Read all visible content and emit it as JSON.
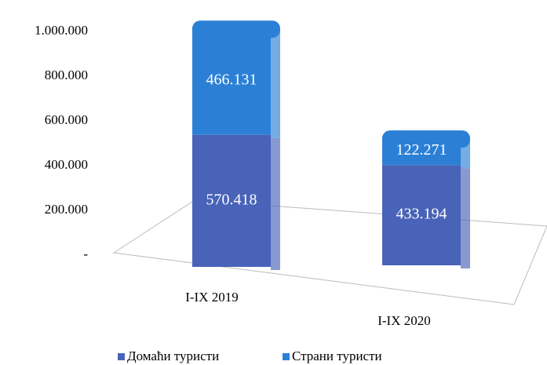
{
  "chart_data": {
    "type": "bar",
    "stacked": true,
    "categories": [
      "I-IX 2019",
      "I-IX 2020"
    ],
    "series": [
      {
        "name": "Домаћи туристи",
        "color": "#4863b8",
        "values": [
          570418,
          433194
        ],
        "value_labels": [
          "570.418",
          "433.194"
        ]
      },
      {
        "name": "Страни туристи",
        "color": "#2b80d6",
        "values": [
          466131,
          122271
        ],
        "value_labels": [
          "466.131",
          "122.271"
        ]
      }
    ],
    "ylim": [
      0,
      1000000
    ],
    "yticks": [
      {
        "value": 0,
        "label": "-"
      },
      {
        "value": 200000,
        "label": "200.000"
      },
      {
        "value": 400000,
        "label": "400.000"
      },
      {
        "value": 600000,
        "label": "600.000"
      },
      {
        "value": 800000,
        "label": "800.000"
      },
      {
        "value": 1000000,
        "label": "1.000.000"
      }
    ],
    "legend": "bottom"
  }
}
